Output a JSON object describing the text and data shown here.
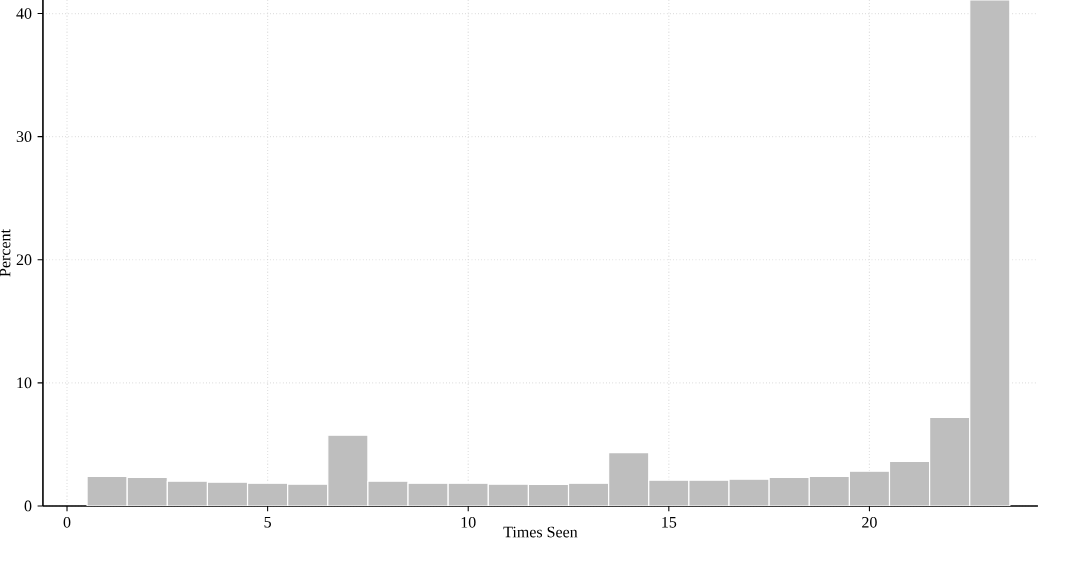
{
  "chart_data": {
    "type": "histogram",
    "xlabel": "Times Seen",
    "ylabel": "Percent",
    "color": "#bebebe",
    "bins": [
      0.5,
      1.5,
      2.5,
      3.5,
      4.5,
      5.5,
      6.5,
      7.5,
      8.5,
      9.5,
      10.5,
      11.5,
      12.5,
      13.5,
      14.5,
      15.5,
      16.5,
      17.5,
      18.5,
      19.5,
      20.5,
      21.5,
      22.5,
      23.5
    ],
    "values": [
      2.41,
      2.33,
      2.01,
      1.93,
      1.85,
      1.77,
      5.75,
      2.01,
      1.85,
      1.85,
      1.77,
      1.76,
      1.85,
      4.33,
      2.09,
      2.09,
      2.17,
      2.33,
      2.41,
      2.82,
      3.63,
      7.2,
      41.1
    ],
    "xlim": [
      -0.6,
      24.2
    ],
    "ylim": [
      0,
      41.1
    ],
    "xticks": [
      0,
      5,
      10,
      15,
      20
    ],
    "yticks": [
      0,
      10,
      20,
      30,
      40
    ],
    "grid": true
  }
}
